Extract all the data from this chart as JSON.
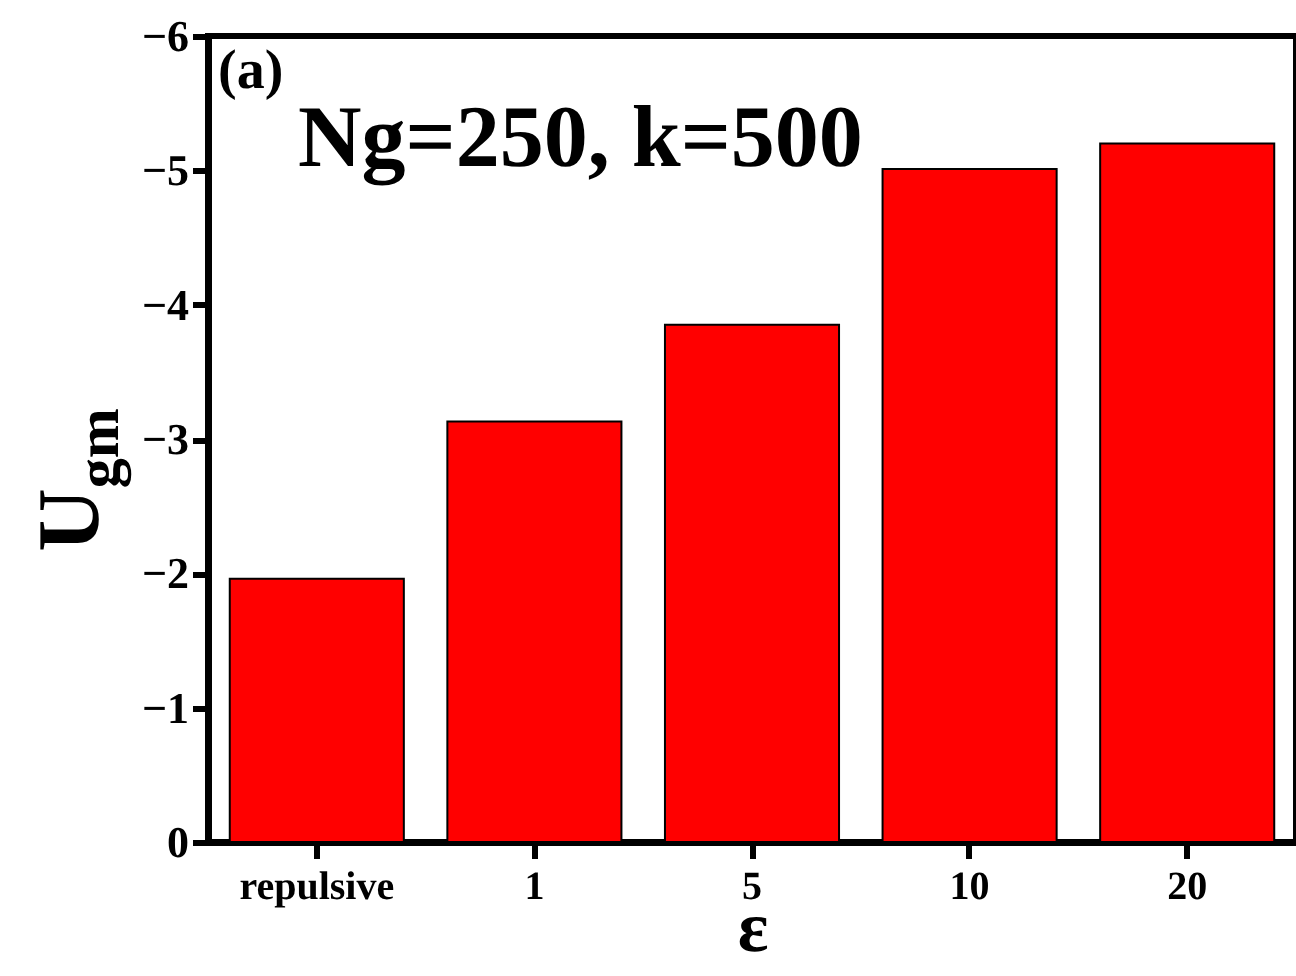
{
  "chart_data": {
    "type": "bar",
    "xlabel": "ε",
    "ylabel": "U$_{gm}$",
    "categories": [
      "repulsive",
      "1",
      "5",
      "10",
      "20"
    ],
    "values": [
      -1.96,
      -3.13,
      -3.85,
      -5.01,
      -5.2
    ],
    "color": "#ff0000",
    "ylim": [
      0,
      -6
    ],
    "yticks": [
      0,
      -1,
      -2,
      -3,
      -4,
      -5,
      -6
    ],
    "annotations": [
      "(a)",
      "Ng=250, k=500"
    ]
  }
}
